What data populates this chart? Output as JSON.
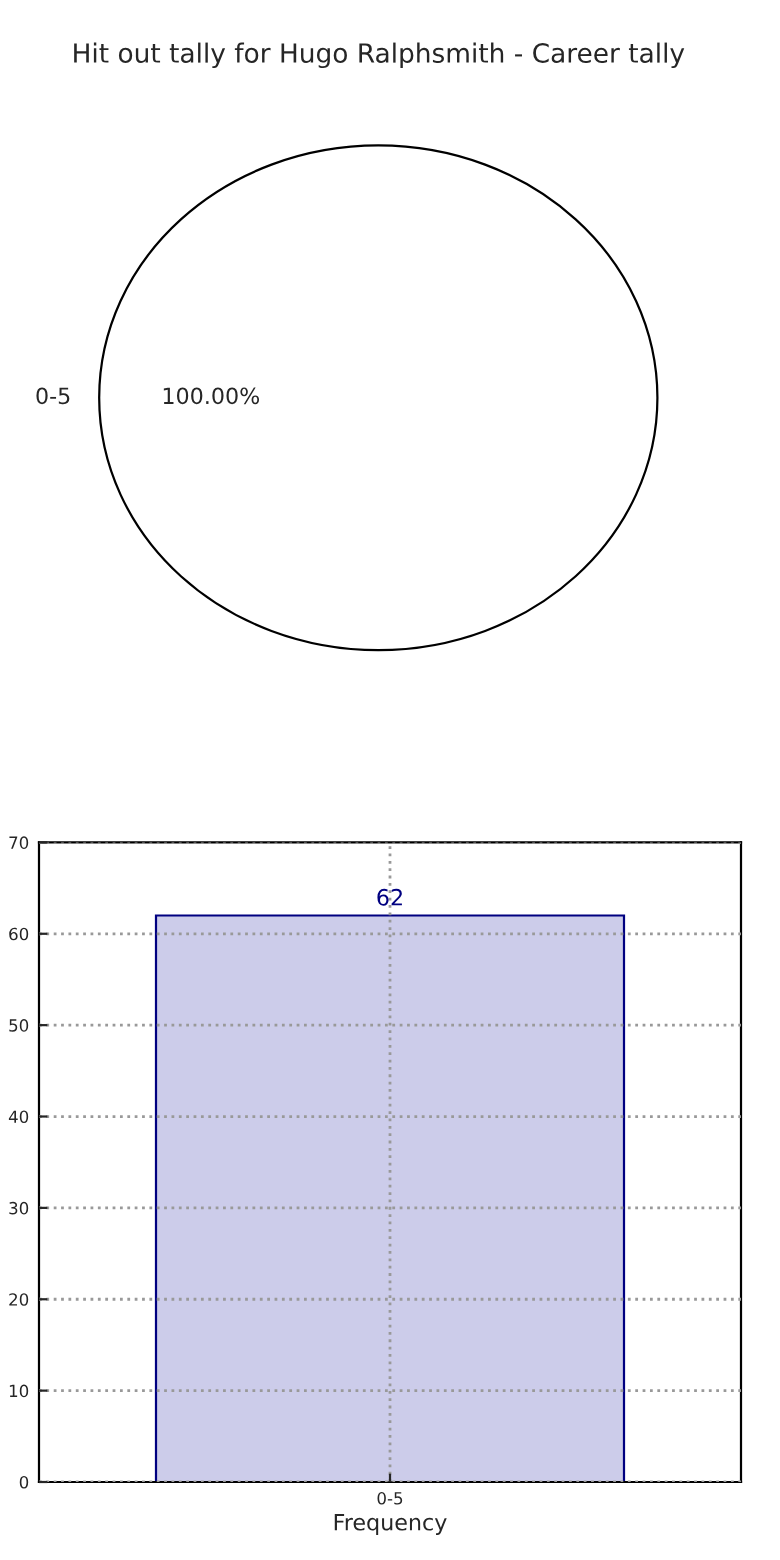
{
  "chart_data": [
    {
      "type": "pie",
      "title": "Hit out tally for Hugo Ralphsmith - Career tally",
      "categories": [
        "0-5"
      ],
      "values": [
        100
      ],
      "colors": [
        "#ffffff"
      ],
      "value_labels": [
        "100.00%"
      ]
    },
    {
      "type": "bar",
      "categories": [
        "0-5"
      ],
      "values": [
        62
      ],
      "color": "#ccccea",
      "xlabel": "Frequency",
      "ylim": [
        0,
        70
      ],
      "yticks": [
        0,
        10,
        20,
        30,
        40,
        50,
        60,
        70
      ],
      "grid": true,
      "data_labels": true
    }
  ]
}
